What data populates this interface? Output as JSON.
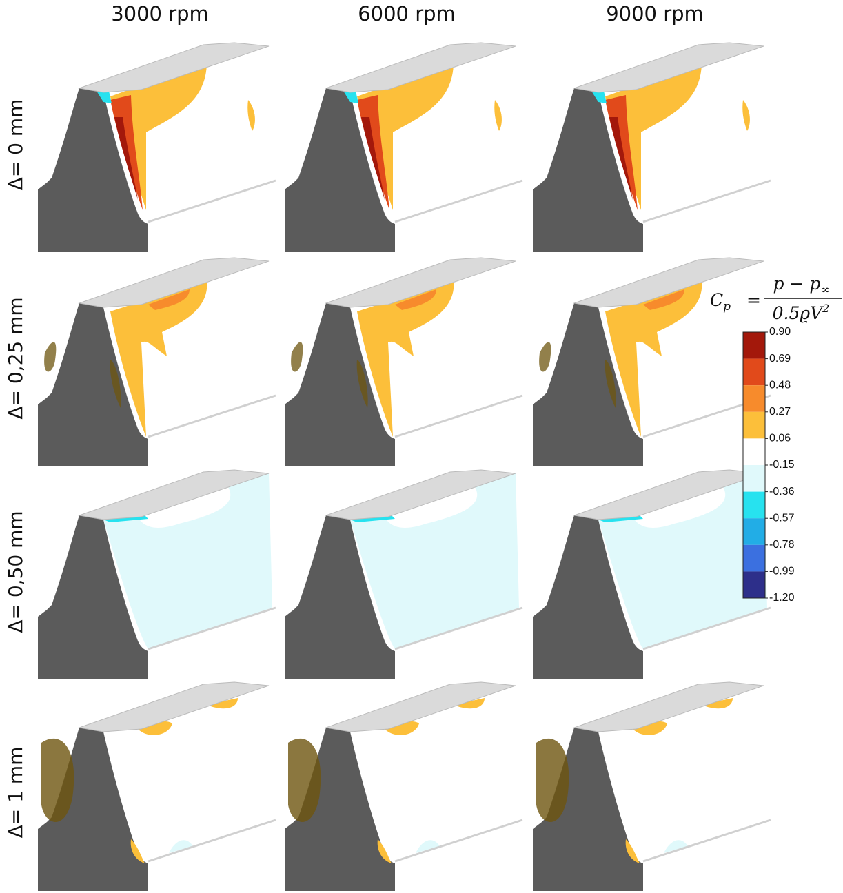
{
  "column_headers": [
    "3000 rpm",
    "6000 rpm",
    "9000 rpm"
  ],
  "row_labels": [
    "Δ= 0 mm",
    "Δ= 0,25 mm",
    "Δ= 0,50 mm",
    "Δ= 1 mm"
  ],
  "colorbar": {
    "formula": {
      "lhs": "C",
      "lhs_sub": "p",
      "equals": "=",
      "numerator": "p − p",
      "numerator_sub": "∞",
      "denominator": "0.5ϱV",
      "denominator_sup": "2"
    },
    "clim": [
      -1.2,
      0.9
    ],
    "ticks": [
      {
        "value": 0.9,
        "label": "0.90"
      },
      0.69,
      0.48,
      0.27,
      0.06,
      -0.15,
      -0.36,
      -0.57,
      -0.78,
      -0.99,
      {
        "value": -1.2,
        "label": "-1.20"
      }
    ],
    "colors": [
      "#a3180b",
      "#e14a1b",
      "#f78b2c",
      "#fcbf3a",
      "#ffffff",
      "#e0f9fb",
      "#27e2ef",
      "#22ade6",
      "#3b70e0",
      "#2d2f8a"
    ]
  }
}
